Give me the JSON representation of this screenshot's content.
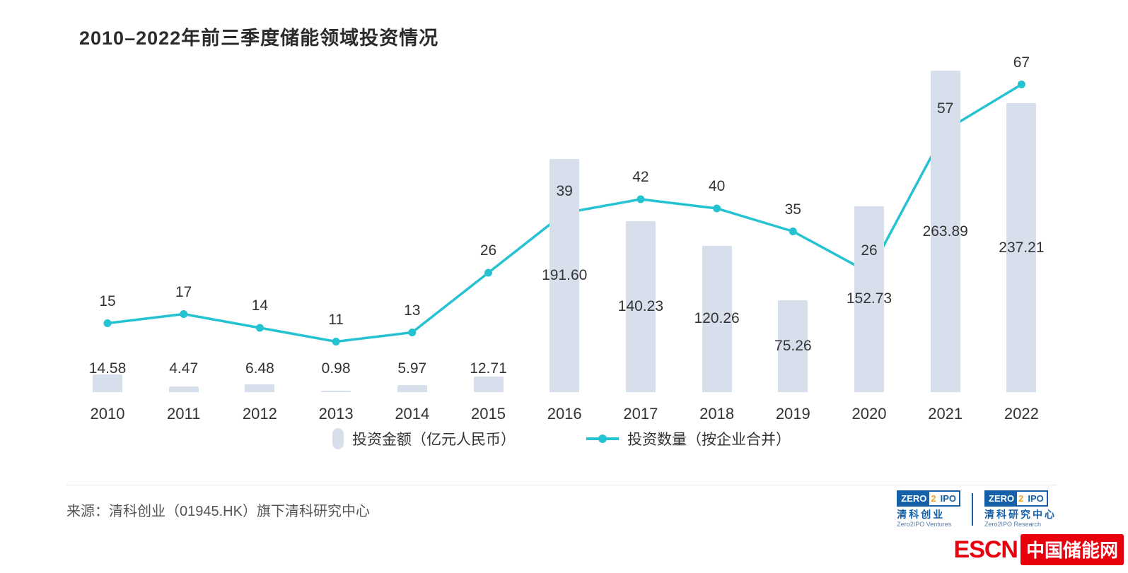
{
  "title": "2010–2022年前三季度储能领域投资情况",
  "chart_data": {
    "type": "bar+line",
    "title": "2010–2022年前三季度储能领域投资情况",
    "categories": [
      "2010",
      "2011",
      "2012",
      "2013",
      "2014",
      "2015",
      "2016",
      "2017",
      "2018",
      "2019",
      "2020",
      "2021",
      "2022"
    ],
    "series": [
      {
        "name": "投资金额（亿元人民币）",
        "type": "bar",
        "values": [
          14.58,
          4.47,
          6.48,
          0.98,
          5.97,
          12.71,
          191.6,
          140.23,
          120.26,
          75.26,
          152.73,
          263.89,
          237.21
        ],
        "labels": [
          "14.58",
          "4.47",
          "6.48",
          "0.98",
          "5.97",
          "12.71",
          "191.60",
          "140.23",
          "120.26",
          "75.26",
          "152.73",
          "263.89",
          "237.21"
        ],
        "color": "#d7dfec"
      },
      {
        "name": "投资数量（按企业合并）",
        "type": "line",
        "values": [
          15,
          17,
          14,
          11,
          13,
          26,
          39,
          42,
          40,
          35,
          26,
          57,
          67
        ],
        "labels": [
          "15",
          "17",
          "14",
          "11",
          "13",
          "26",
          "39",
          "42",
          "40",
          "35",
          "26",
          "57",
          "67"
        ],
        "color": "#25c2d2"
      }
    ],
    "axes_visible": false,
    "grid": false,
    "legend_position": "bottom",
    "value_labels_shown": true
  },
  "legend": {
    "bar_label": "投资金额（亿元人民币）",
    "line_label": "投资数量（按企业合并）"
  },
  "source": "来源：清科创业（01945.HK）旗下清科研究中心",
  "logos": {
    "ventures": {
      "box_zero": "ZERO",
      "box_2": "2",
      "box_ipo": "IPO",
      "cn": "清科创业",
      "en": "Zero2IPO Ventures"
    },
    "research": {
      "box_zero": "ZERO",
      "box_2": "2",
      "box_ipo": "IPO",
      "cn": "清科研究中心",
      "en": "Zero2IPO Research"
    }
  },
  "footer_brand": {
    "escn": "ESCN",
    "cn": "中国储能网"
  },
  "colors": {
    "bar": "#d7dfec",
    "line": "#25c2d2",
    "text": "#333333",
    "escn_red": "#e8000d",
    "logo_blue": "#1660a8",
    "logo_orange": "#f5a11c"
  }
}
